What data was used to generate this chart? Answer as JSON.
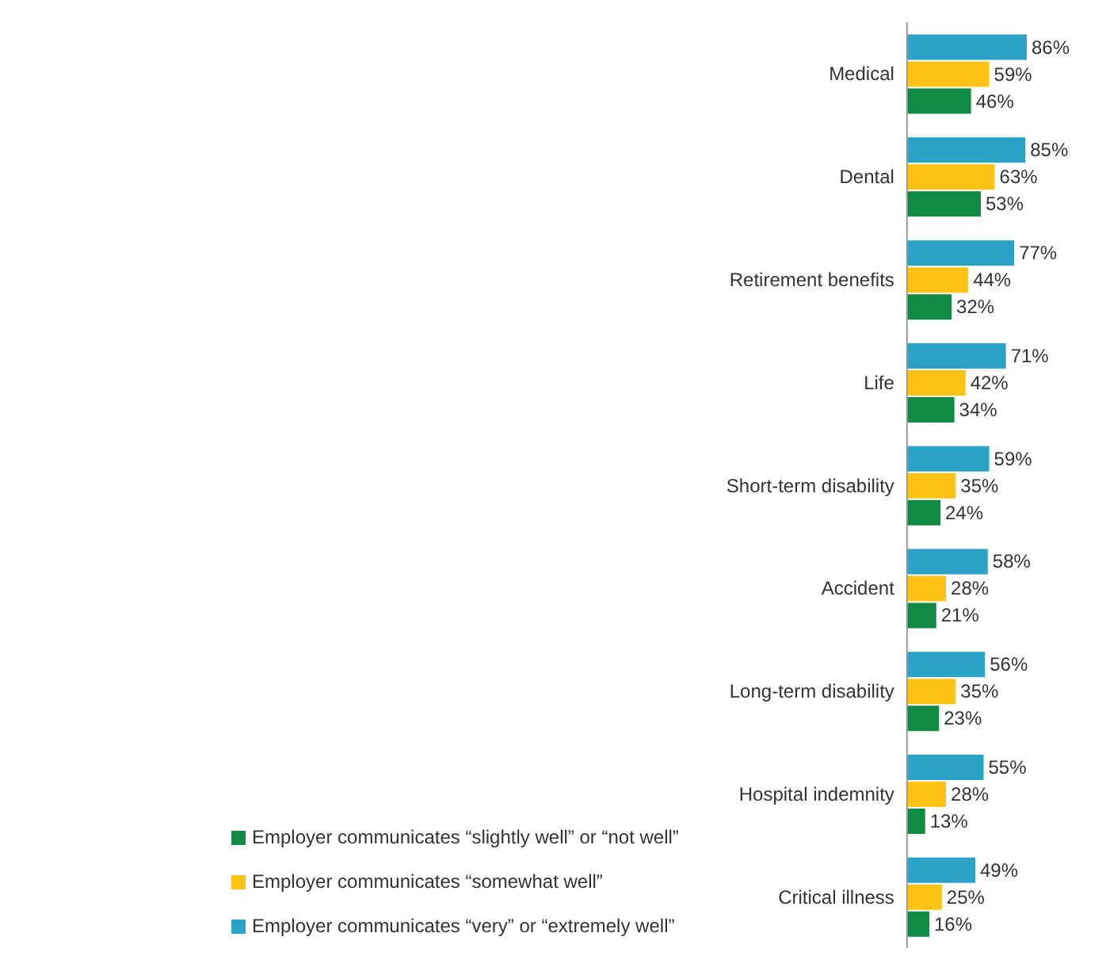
{
  "chart_data": {
    "type": "bar",
    "orientation": "horizontal",
    "categories": [
      "Medical",
      "Dental",
      "Retirement benefits",
      "Life",
      "Short-term disability",
      "Accident",
      "Long-term disability",
      "Hospital indemnity",
      "Critical illness"
    ],
    "series": [
      {
        "name": "Employer communicates “very” or “extremely well”",
        "color": "#2aa3c6",
        "values": [
          86,
          85,
          77,
          71,
          59,
          58,
          56,
          55,
          49
        ],
        "value_labels": [
          "86%",
          "85%",
          "77%",
          "71%",
          "59%",
          "58%",
          "56%",
          "55%",
          "49%"
        ]
      },
      {
        "name": "Employer communicates “somewhat well”",
        "color": "#fdc314",
        "values": [
          59,
          63,
          44,
          42,
          35,
          28,
          35,
          28,
          25
        ],
        "value_labels": [
          "59%",
          "63%",
          "44%",
          "42%",
          "35%",
          "28%",
          "35%",
          "28%",
          "25%"
        ]
      },
      {
        "name": "Employer communicates “slightly well” or “not well”",
        "color": "#118a45",
        "values": [
          46,
          53,
          32,
          34,
          24,
          21,
          23,
          13,
          16
        ],
        "value_labels": [
          "46%",
          "53%",
          "32%",
          "34%",
          "24%",
          "21%",
          "23%",
          "13%",
          "16%"
        ]
      }
    ],
    "legend": "bottom",
    "grid": false
  }
}
